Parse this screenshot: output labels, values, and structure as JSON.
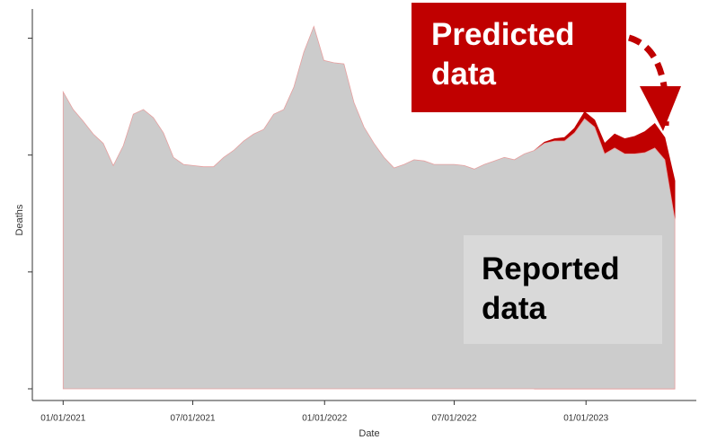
{
  "chart_data": {
    "type": "area",
    "x_label": "Date",
    "y_label": "Deaths",
    "x": [
      "01/01/2021",
      "01/15/2021",
      "01/29/2021",
      "02/12/2021",
      "02/26/2021",
      "03/12/2021",
      "03/26/2021",
      "04/09/2021",
      "04/23/2021",
      "05/07/2021",
      "05/21/2021",
      "06/04/2021",
      "06/18/2021",
      "07/02/2021",
      "07/16/2021",
      "07/30/2021",
      "08/13/2021",
      "08/27/2021",
      "09/10/2021",
      "09/24/2021",
      "10/08/2021",
      "10/22/2021",
      "11/05/2021",
      "11/19/2021",
      "12/03/2021",
      "12/17/2021",
      "12/31/2021",
      "01/14/2022",
      "01/28/2022",
      "02/11/2022",
      "02/25/2022",
      "03/11/2022",
      "03/25/2022",
      "04/08/2022",
      "04/22/2022",
      "05/06/2022",
      "05/20/2022",
      "06/03/2022",
      "06/17/2022",
      "07/01/2022",
      "07/15/2022",
      "07/29/2022",
      "08/12/2022",
      "08/26/2022",
      "09/09/2022",
      "09/23/2022",
      "10/07/2022",
      "10/21/2022",
      "11/04/2022",
      "11/18/2022",
      "12/02/2022",
      "12/16/2022",
      "12/30/2022",
      "01/13/2023",
      "01/27/2023",
      "02/10/2023",
      "02/24/2023",
      "03/10/2023",
      "03/24/2023",
      "04/07/2023",
      "04/21/2023",
      "05/05/2023"
    ],
    "series": [
      {
        "name": "Predicted data",
        "color": "#c00000",
        "values": [
          null,
          null,
          null,
          null,
          null,
          null,
          null,
          null,
          null,
          null,
          null,
          null,
          null,
          null,
          null,
          null,
          null,
          null,
          null,
          null,
          null,
          null,
          null,
          null,
          null,
          null,
          null,
          null,
          null,
          null,
          null,
          null,
          null,
          null,
          null,
          null,
          null,
          null,
          null,
          null,
          null,
          null,
          null,
          null,
          null,
          null,
          null,
          2.04,
          2.11,
          2.14,
          2.15,
          2.23,
          2.37,
          2.3,
          2.1,
          2.18,
          2.14,
          2.16,
          2.2,
          2.27,
          2.15,
          1.78
        ]
      },
      {
        "name": "Reported data",
        "color": "#cccccc",
        "values": [
          2.54,
          2.39,
          2.29,
          2.18,
          2.1,
          1.91,
          2.08,
          2.35,
          2.39,
          2.32,
          2.19,
          1.98,
          1.92,
          1.91,
          1.9,
          1.9,
          1.98,
          2.04,
          2.12,
          2.18,
          2.22,
          2.35,
          2.39,
          2.58,
          2.88,
          3.1,
          2.81,
          2.79,
          2.78,
          2.45,
          2.24,
          2.1,
          1.98,
          1.89,
          1.92,
          1.96,
          1.95,
          1.92,
          1.92,
          1.92,
          1.91,
          1.88,
          1.92,
          1.95,
          1.98,
          1.96,
          2.01,
          2.04,
          2.1,
          2.12,
          2.12,
          2.19,
          2.31,
          2.24,
          2.01,
          2.06,
          2.01,
          2.01,
          2.02,
          2.06,
          1.96,
          1.45
        ]
      }
    ],
    "xlim": [
      "11/19/2020",
      "06/04/2023"
    ],
    "xticks": [
      "01/01/2021",
      "07/01/2021",
      "01/01/2022",
      "07/01/2022",
      "01/01/2023"
    ],
    "ylim": [
      -0.1,
      3.25
    ],
    "yticks": [
      0,
      1,
      2,
      3
    ],
    "grid": false
  }
}
